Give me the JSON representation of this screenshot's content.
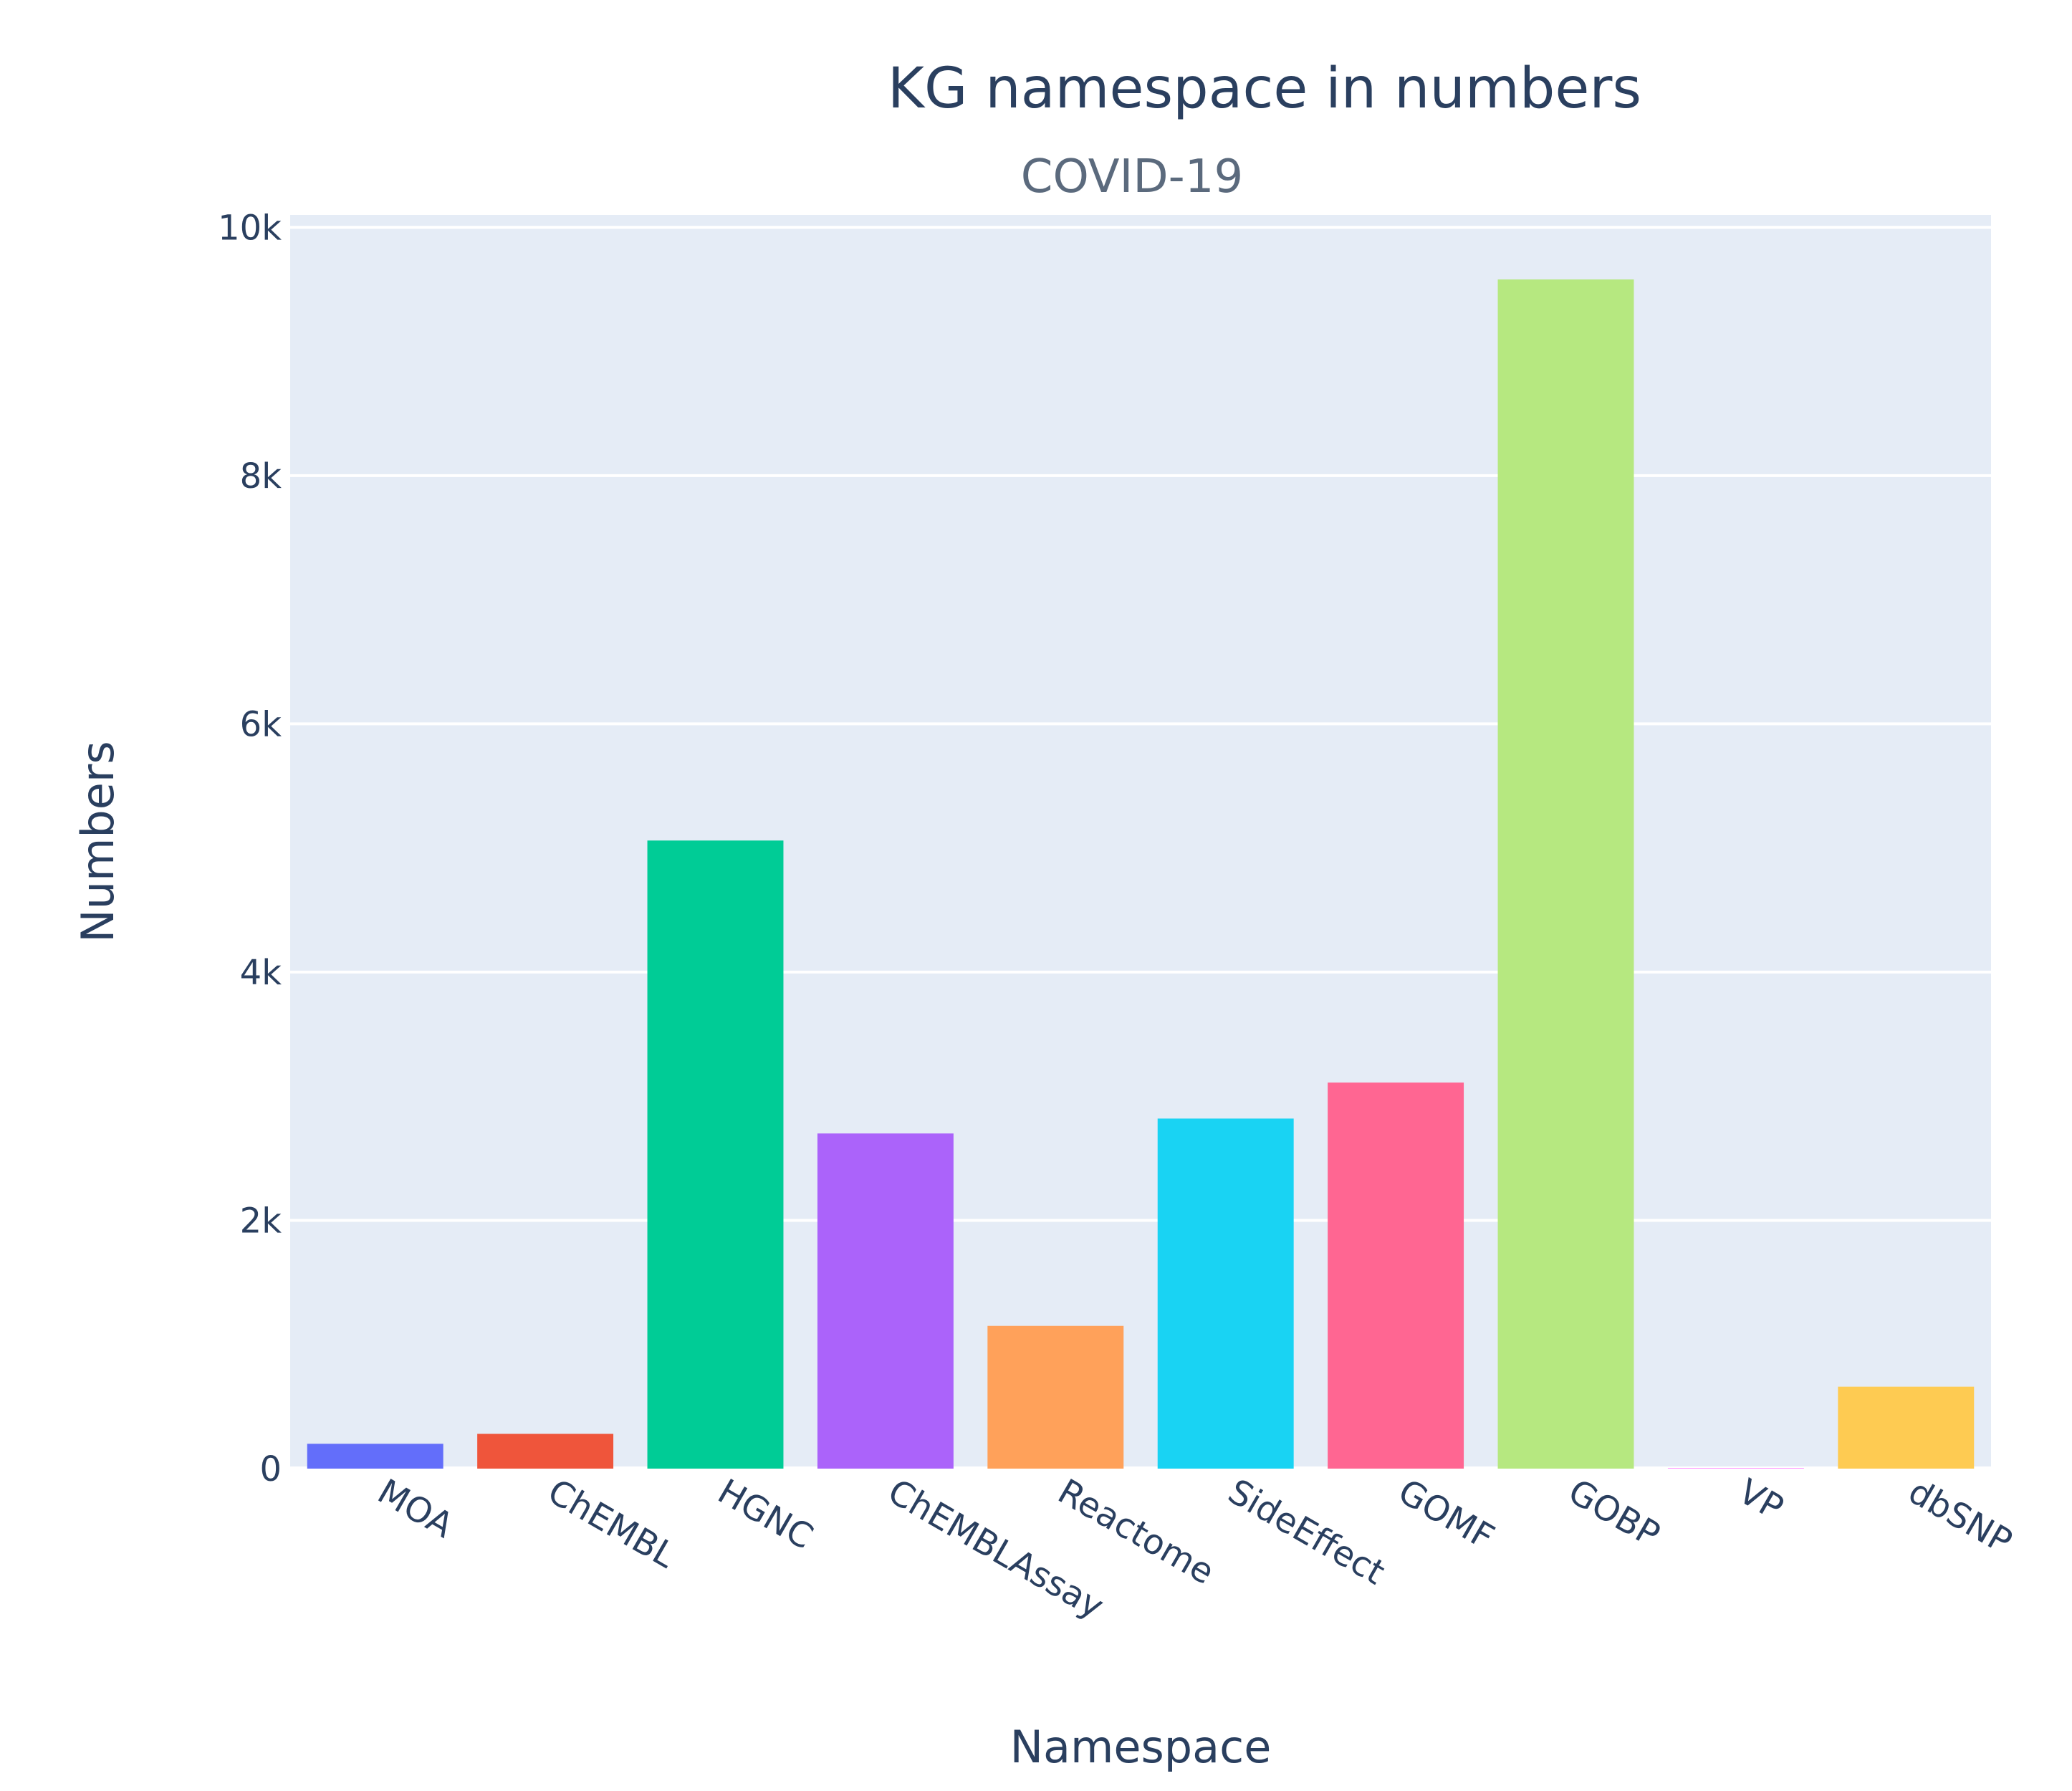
{
  "chart_data": {
    "type": "bar",
    "title": "KG namespace in numbers",
    "subtitle": "COVID-19",
    "xlabel": "Namespace",
    "ylabel": "Numbers",
    "categories": [
      "MOA",
      "ChEMBL",
      "HGNC",
      "ChEMBLAssay",
      "Reactome",
      "SideEffect",
      "GOMF",
      "GOBP",
      "VP",
      "dbSNP"
    ],
    "values": [
      200,
      280,
      5060,
      2700,
      1150,
      2820,
      3110,
      9580,
      5,
      660
    ],
    "colors": [
      "#636efa",
      "#ef553b",
      "#00cc96",
      "#ab63fa",
      "#ffa15a",
      "#19d3f3",
      "#ff6692",
      "#b6e880",
      "#ff97ff",
      "#fecb52"
    ],
    "ylim": [
      0,
      10100
    ],
    "yticks": [
      0,
      2000,
      4000,
      6000,
      8000,
      10000
    ],
    "yticklabels": [
      "0",
      "2k",
      "4k",
      "6k",
      "8k",
      "10k"
    ],
    "grid": true,
    "legend": "none",
    "background": "#e5ecf6"
  }
}
